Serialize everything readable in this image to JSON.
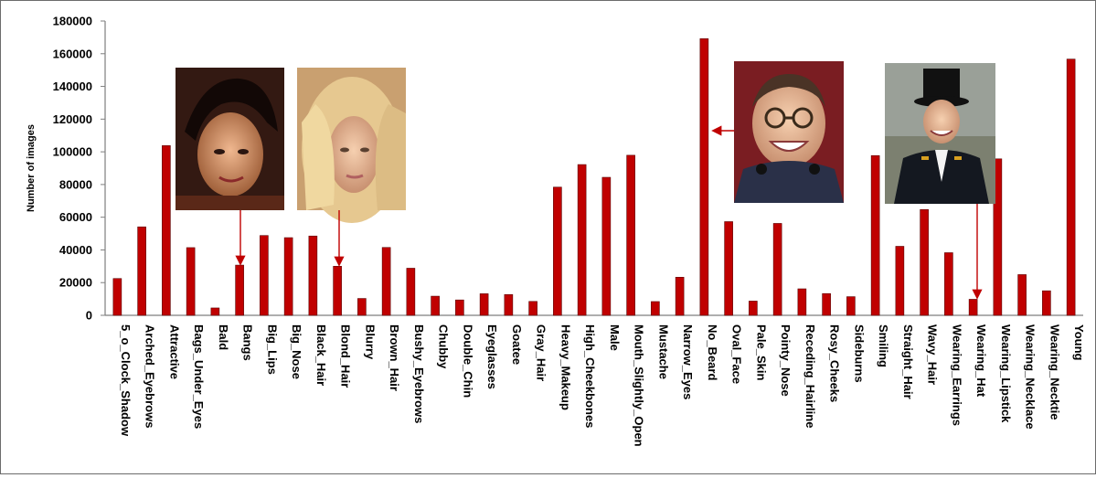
{
  "chart_data": {
    "type": "bar",
    "title": "",
    "xlabel": "",
    "ylabel": "Number of images",
    "ylim": [
      0,
      180000
    ],
    "yticks": [
      0,
      20000,
      40000,
      60000,
      80000,
      100000,
      120000,
      140000,
      160000,
      180000
    ],
    "ytick_labels": [
      "0",
      "20000",
      "40000",
      "60000",
      "80000",
      "100000",
      "120000",
      "140000",
      "160000",
      "180000"
    ],
    "grid": false,
    "legend": "none",
    "bar_color": "#c00000",
    "categories": [
      "5_o_Clock_Shadow",
      "Arched_Eyebrows",
      "Attractive",
      "Bags_Under_Eyes",
      "Bald",
      "Bangs",
      "Big_Lips",
      "Big_Nose",
      "Black_Hair",
      "Blond_Hair",
      "Blurry",
      "Brown_Hair",
      "Bushy_Eyebrows",
      "Chubby",
      "Double_Chin",
      "Eyeglasses",
      "Goatee",
      "Gray_Hair",
      "Heavy_Makeup",
      "High_Cheekbones",
      "Male",
      "Mouth_Slightly_Open",
      "Mustache",
      "Narrow_Eyes",
      "No_Beard",
      "Oval_Face",
      "Pale_Skin",
      "Pointy_Nose",
      "Receding_Hairline",
      "Rosy_Cheeks",
      "Sideburns",
      "Smiling",
      "Straight_Hair",
      "Wavy_Hair",
      "Wearing_Earrings",
      "Wearing_Hat",
      "Wearing_Lipstick",
      "Wearing_Necklace",
      "Wearing_Necktie",
      "Young"
    ],
    "values": [
      22500,
      54100,
      103800,
      41400,
      4500,
      30700,
      48800,
      47500,
      48500,
      30000,
      10300,
      41500,
      28800,
      11700,
      9400,
      13200,
      12700,
      8500,
      78400,
      92200,
      84400,
      97900,
      8400,
      23300,
      169200,
      57300,
      8700,
      56200,
      16200,
      13300,
      11400,
      97700,
      42200,
      64700,
      38300,
      9800,
      95700,
      24900,
      15000,
      156700
    ],
    "annotations": [
      {
        "name": "bangs-example-photo",
        "target": "Bangs",
        "arrow": "down"
      },
      {
        "name": "blond-hair-example-photo",
        "target": "Blond_Hair",
        "arrow": "down"
      },
      {
        "name": "no-beard-example-photo",
        "target": "No_Beard",
        "arrow": "left"
      },
      {
        "name": "wearing-hat-example-photo",
        "target": "Wearing_Hat",
        "arrow": "down"
      }
    ]
  }
}
